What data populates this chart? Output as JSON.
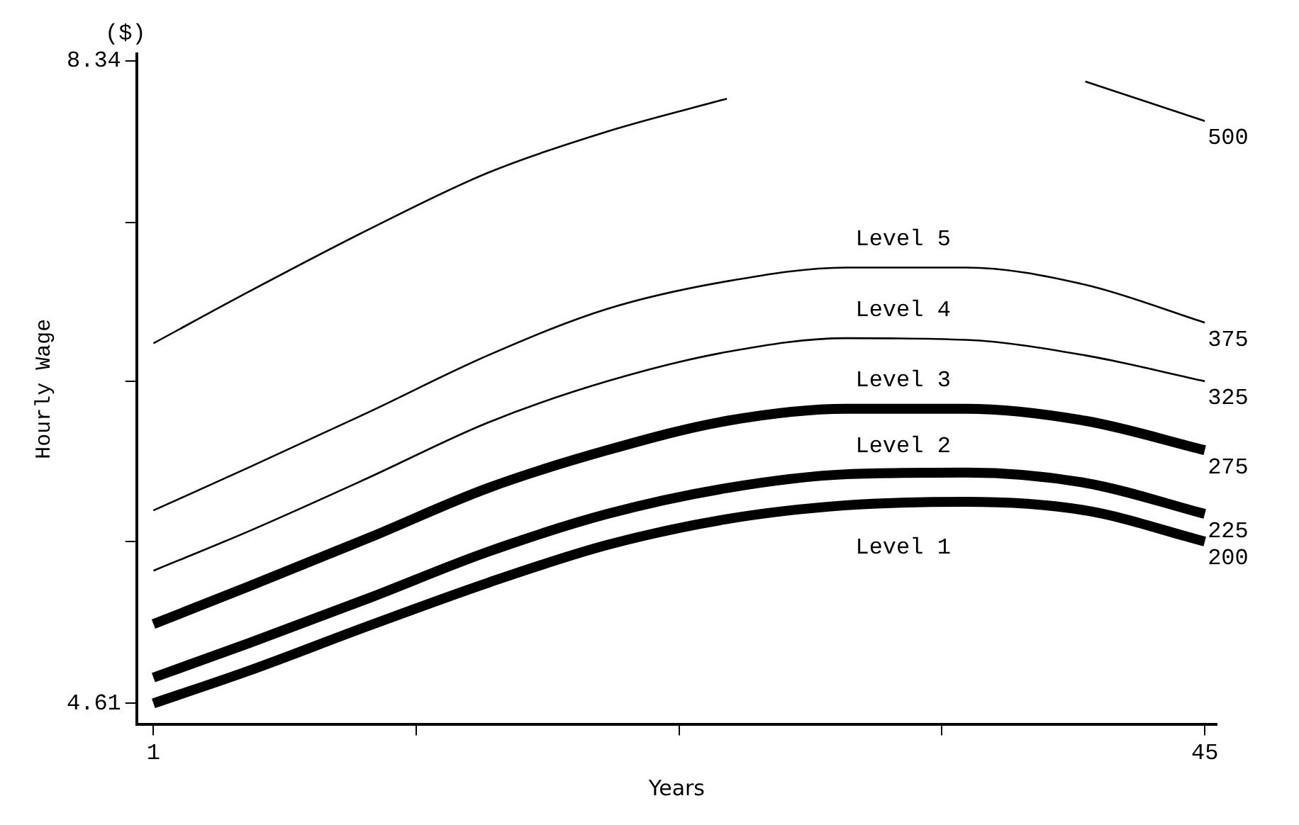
{
  "chart_data": {
    "type": "line",
    "xlabel": "Years",
    "ylabel": "Hourly Wage",
    "x": [
      1,
      5,
      10,
      15,
      20,
      25,
      30,
      35,
      40,
      45
    ],
    "xlim": [
      0.3,
      45.5
    ],
    "ylim": [
      4.49,
      8.38
    ],
    "xticks": [
      1,
      {
        "value": 12,
        "label": null
      },
      {
        "value": 23,
        "label": null
      },
      {
        "value": 34,
        "label": null
      },
      45
    ],
    "yticks": [
      4.61,
      {
        "value": 5.55,
        "label": null
      },
      {
        "value": 6.48,
        "label": null
      },
      {
        "value": 7.4,
        "label": null
      },
      8.34
    ],
    "series": [
      {
        "name": "500",
        "color": "#000000",
        "values": [
          6.7,
          7.0,
          7.36,
          7.69,
          7.93,
          8.12,
          null,
          null,
          8.22,
          7.99
        ]
      },
      {
        "name": "375",
        "color": "#000000",
        "values": [
          5.73,
          5.98,
          6.3,
          6.63,
          6.9,
          7.06,
          7.14,
          7.14,
          7.04,
          6.82
        ]
      },
      {
        "name": "325",
        "color": "#000000",
        "values": [
          5.38,
          5.61,
          5.92,
          6.24,
          6.48,
          6.65,
          6.73,
          6.72,
          6.63,
          6.48
        ]
      },
      {
        "name": "275",
        "color": "#000000",
        "values": [
          5.07,
          5.29,
          5.57,
          5.86,
          6.08,
          6.25,
          6.32,
          6.32,
          6.25,
          6.08
        ]
      },
      {
        "name": "225",
        "color": "#000000",
        "values": [
          4.76,
          4.96,
          5.22,
          5.49,
          5.71,
          5.86,
          5.94,
          5.95,
          5.89,
          5.71
        ]
      },
      {
        "name": "200",
        "color": "#000000",
        "values": [
          4.61,
          4.8,
          5.06,
          5.31,
          5.53,
          5.68,
          5.76,
          5.78,
          5.73,
          5.55
        ]
      }
    ],
    "annotations": [
      "($)",
      "Level 5",
      "Level 4",
      "Level 3",
      "Level 2",
      "Level 1"
    ],
    "legend": false,
    "grid": false,
    "marker": "none",
    "line_style": "solid"
  }
}
